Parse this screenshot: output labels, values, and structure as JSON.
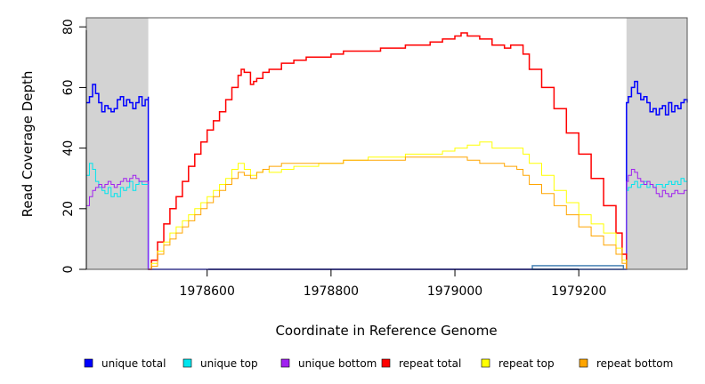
{
  "chart_data": {
    "type": "line",
    "title": "",
    "xlabel": "Coordinate in Reference Genome",
    "ylabel": "Read Coverage Depth",
    "xlim": [
      1978405,
      1979375
    ],
    "ylim": [
      0,
      83
    ],
    "x_ticks": [
      1978600,
      1978800,
      1979000,
      1979200
    ],
    "y_ticks": [
      0,
      20,
      40,
      60,
      80
    ],
    "x_tick_labels": [
      "1978600",
      "1978800",
      "1979000",
      "1979200"
    ],
    "y_tick_labels": [
      "0",
      "20",
      "40",
      "60",
      "80"
    ],
    "grid": false,
    "legend_position": "bottom",
    "shaded_regions": [
      {
        "x_start": 1978405,
        "x_end": 1978505,
        "color": "#d3d3d3"
      },
      {
        "x_start": 1979277,
        "x_end": 1979375,
        "color": "#d3d3d3"
      }
    ],
    "feature_box": {
      "x_start": 1979125,
      "x_end": 1979272,
      "y_low": 0,
      "y_high": 1.2,
      "color": "#4682b4"
    },
    "series": [
      {
        "name": "unique total",
        "color": "#0000ff",
        "width": 1.5,
        "x": [
          1978405,
          1978410,
          1978415,
          1978420,
          1978425,
          1978430,
          1978435,
          1978440,
          1978445,
          1978450,
          1978455,
          1978460,
          1978465,
          1978470,
          1978475,
          1978480,
          1978485,
          1978490,
          1978495,
          1978500,
          1978505,
          1978505,
          1979277,
          1979277,
          1979280,
          1979285,
          1979290,
          1979295,
          1979300,
          1979305,
          1979310,
          1979315,
          1979320,
          1979325,
          1979330,
          1979335,
          1979340,
          1979345,
          1979350,
          1979355,
          1979360,
          1979365,
          1979370,
          1979375
        ],
        "y": [
          55,
          57,
          61,
          58,
          55,
          52,
          54,
          53,
          52,
          53,
          56,
          57,
          54,
          56,
          55,
          53,
          55,
          57,
          54,
          56,
          57,
          0,
          0,
          55,
          57,
          60,
          62,
          58,
          56,
          57,
          55,
          52,
          53,
          51,
          53,
          54,
          51,
          55,
          52,
          54,
          53,
          55,
          56,
          55
        ]
      },
      {
        "name": "unique top",
        "color": "#00e5ee",
        "width": 1,
        "x": [
          1978405,
          1978410,
          1978415,
          1978420,
          1978425,
          1978430,
          1978435,
          1978440,
          1978445,
          1978450,
          1978455,
          1978460,
          1978465,
          1978470,
          1978475,
          1978480,
          1978485,
          1978490,
          1978495,
          1978500,
          1978505,
          1978505,
          1979277,
          1979277,
          1979280,
          1979285,
          1979290,
          1979295,
          1979300,
          1979305,
          1979310,
          1979315,
          1979320,
          1979325,
          1979330,
          1979335,
          1979340,
          1979345,
          1979350,
          1979355,
          1979360,
          1979365,
          1979370,
          1979375
        ],
        "y": [
          31,
          35,
          33,
          29,
          27,
          26,
          25,
          27,
          24,
          25,
          24,
          27,
          26,
          27,
          29,
          26,
          28,
          29,
          28,
          28,
          28,
          0,
          0,
          26,
          27,
          28,
          29,
          27,
          28,
          29,
          27,
          28,
          27,
          28,
          28,
          27,
          28,
          29,
          28,
          29,
          28,
          30,
          29,
          29
        ]
      },
      {
        "name": "unique bottom",
        "color": "#a020f0",
        "width": 1,
        "x": [
          1978405,
          1978410,
          1978415,
          1978420,
          1978425,
          1978430,
          1978435,
          1978440,
          1978445,
          1978450,
          1978455,
          1978460,
          1978465,
          1978470,
          1978475,
          1978480,
          1978485,
          1978490,
          1978495,
          1978500,
          1978505,
          1978505,
          1979277,
          1979277,
          1979280,
          1979285,
          1979290,
          1979295,
          1979300,
          1979305,
          1979310,
          1979315,
          1979320,
          1979325,
          1979330,
          1979335,
          1979340,
          1979345,
          1979350,
          1979355,
          1979360,
          1979365,
          1979370,
          1979375
        ],
        "y": [
          21,
          24,
          26,
          27,
          28,
          27,
          28,
          29,
          28,
          27,
          28,
          29,
          30,
          29,
          30,
          31,
          30,
          29,
          29,
          29,
          29,
          0,
          0,
          29,
          31,
          33,
          32,
          30,
          29,
          28,
          29,
          28,
          27,
          25,
          24,
          26,
          25,
          24,
          25,
          26,
          25,
          25,
          26,
          26
        ]
      },
      {
        "name": "repeat total",
        "color": "#ff0000",
        "width": 1.5,
        "x": [
          1978505,
          1978510,
          1978520,
          1978530,
          1978540,
          1978550,
          1978560,
          1978570,
          1978580,
          1978590,
          1978600,
          1978610,
          1978620,
          1978630,
          1978640,
          1978650,
          1978655,
          1978660,
          1978670,
          1978675,
          1978680,
          1978690,
          1978700,
          1978720,
          1978740,
          1978760,
          1978780,
          1978800,
          1978820,
          1978840,
          1978860,
          1978880,
          1978900,
          1978920,
          1978940,
          1978960,
          1978980,
          1979000,
          1979010,
          1979020,
          1979040,
          1979060,
          1979080,
          1979090,
          1979100,
          1979110,
          1979120,
          1979140,
          1979160,
          1979180,
          1979200,
          1979220,
          1979240,
          1979260,
          1979270,
          1979277
        ],
        "y": [
          0,
          3,
          9,
          15,
          20,
          24,
          29,
          34,
          38,
          42,
          46,
          49,
          52,
          56,
          60,
          64,
          66,
          65,
          61,
          62,
          63,
          65,
          66,
          68,
          69,
          70,
          70,
          71,
          72,
          72,
          72,
          73,
          73,
          74,
          74,
          75,
          76,
          77,
          78,
          77,
          76,
          74,
          73,
          74,
          74,
          71,
          66,
          60,
          53,
          45,
          38,
          30,
          21,
          12,
          5,
          0
        ]
      },
      {
        "name": "repeat top",
        "color": "#ffff00",
        "width": 1,
        "x": [
          1978505,
          1978510,
          1978520,
          1978530,
          1978540,
          1978550,
          1978560,
          1978570,
          1978580,
          1978590,
          1978600,
          1978610,
          1978620,
          1978630,
          1978640,
          1978650,
          1978660,
          1978670,
          1978680,
          1978690,
          1978700,
          1978720,
          1978740,
          1978760,
          1978780,
          1978800,
          1978820,
          1978840,
          1978860,
          1978880,
          1978900,
          1978920,
          1978940,
          1978960,
          1978980,
          1979000,
          1979020,
          1979040,
          1979060,
          1979080,
          1979100,
          1979110,
          1979120,
          1979140,
          1979160,
          1979180,
          1979200,
          1979220,
          1979240,
          1979260,
          1979270,
          1979277
        ],
        "y": [
          0,
          2,
          6,
          9,
          12,
          14,
          16,
          18,
          20,
          22,
          24,
          26,
          28,
          30,
          33,
          35,
          33,
          31,
          32,
          33,
          32,
          33,
          34,
          34,
          35,
          35,
          36,
          36,
          37,
          37,
          37,
          38,
          38,
          38,
          39,
          40,
          41,
          42,
          40,
          40,
          40,
          38,
          35,
          31,
          26,
          22,
          18,
          15,
          12,
          7,
          3,
          0
        ]
      },
      {
        "name": "repeat bottom",
        "color": "#ffa500",
        "width": 1,
        "x": [
          1978505,
          1978510,
          1978520,
          1978530,
          1978540,
          1978550,
          1978560,
          1978570,
          1978580,
          1978590,
          1978600,
          1978610,
          1978620,
          1978630,
          1978640,
          1978650,
          1978660,
          1978670,
          1978680,
          1978690,
          1978700,
          1978720,
          1978740,
          1978760,
          1978780,
          1978800,
          1978820,
          1978840,
          1978860,
          1978880,
          1978900,
          1978920,
          1978940,
          1978960,
          1978980,
          1979000,
          1979020,
          1979040,
          1979060,
          1979080,
          1979100,
          1979110,
          1979120,
          1979140,
          1979160,
          1979180,
          1979200,
          1979220,
          1979240,
          1979260,
          1979270,
          1979277,
          1979375
        ],
        "y": [
          0,
          1,
          5,
          8,
          10,
          12,
          14,
          16,
          18,
          20,
          22,
          24,
          26,
          28,
          30,
          32,
          31,
          30,
          32,
          33,
          34,
          35,
          35,
          35,
          35,
          35,
          36,
          36,
          36,
          36,
          36,
          37,
          37,
          37,
          37,
          37,
          36,
          35,
          35,
          34,
          33,
          31,
          28,
          25,
          21,
          18,
          14,
          11,
          8,
          5,
          2,
          0,
          0
        ]
      }
    ]
  }
}
